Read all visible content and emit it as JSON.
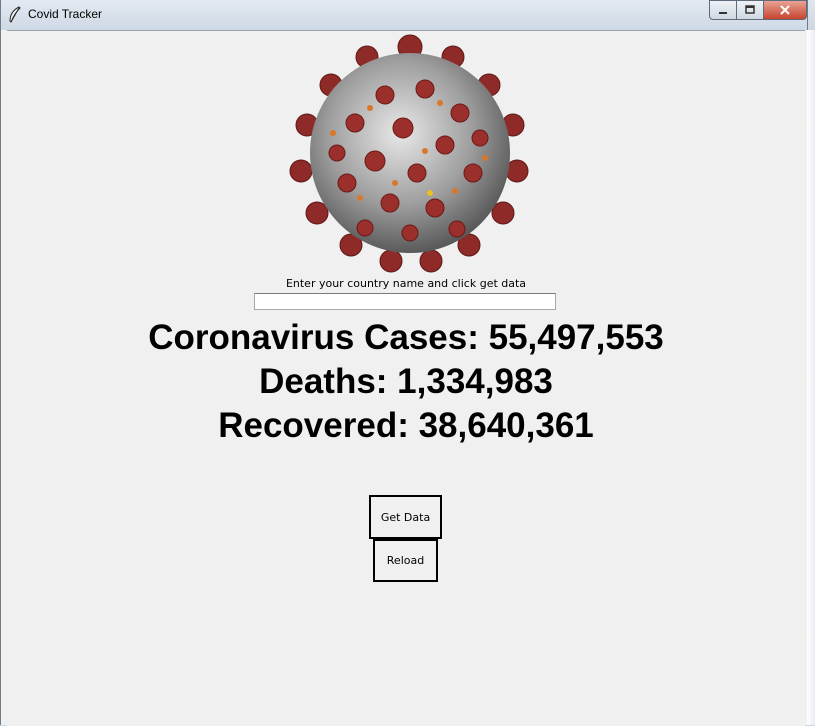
{
  "window": {
    "title": "Covid Tracker",
    "icon": "feather-icon",
    "controls": {
      "minimize": "minimize-icon",
      "maximize": "maximize-icon",
      "close": "close-icon"
    }
  },
  "header": {
    "image": "coronavirus-illustration"
  },
  "form": {
    "prompt": "Enter your country name and click get data",
    "country_value": ""
  },
  "stats": {
    "cases": "Coronavirus Cases: 55,497,553",
    "deaths": "Deaths: 1,334,983",
    "recovered": "Recovered: 38,640,361"
  },
  "buttons": {
    "get_data": "Get Data",
    "reload": "Reload"
  },
  "colors": {
    "background": "#f0f0f0",
    "virus_spike": "#9b2f2b",
    "virus_core": "#c8c8c8"
  }
}
